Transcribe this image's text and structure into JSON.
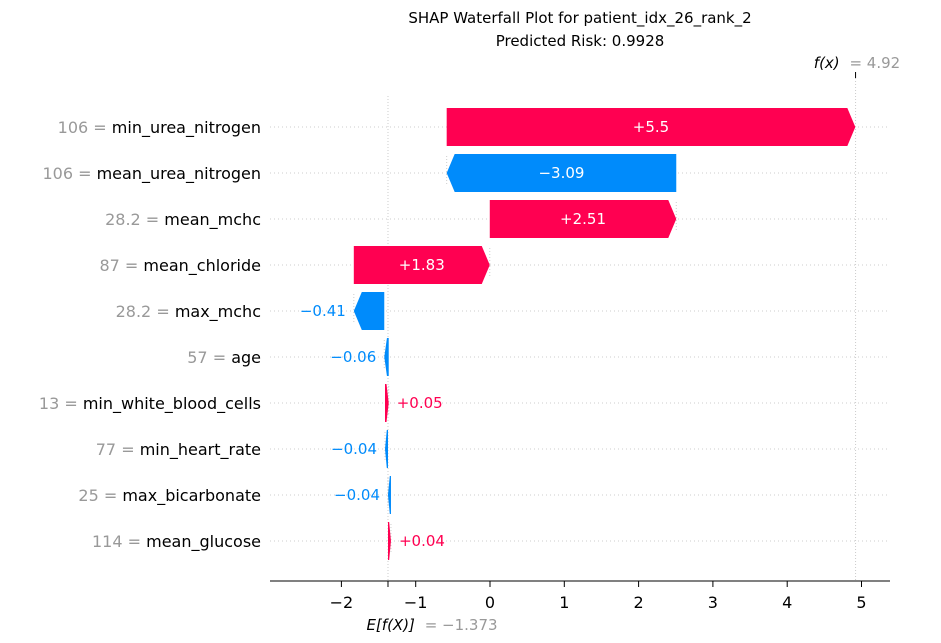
{
  "chart_data": {
    "type": "waterfall",
    "title": "SHAP Waterfall Plot for patient_idx_26_rank_2",
    "subtitle": "Predicted Risk: 0.9928",
    "base_value": -1.373,
    "base_label_math": "E[f(X)]",
    "base_label_value": "= −1.373",
    "output_value": 4.92,
    "output_label_math": "f(x)",
    "output_label_value": "= 4.92",
    "xlim": [
      -3.0,
      5.35
    ],
    "xticks": [
      -2,
      -1,
      0,
      1,
      2,
      3,
      4,
      5
    ],
    "xtick_labels": [
      "−2",
      "−1",
      "0",
      "1",
      "2",
      "3",
      "4",
      "5"
    ],
    "features": [
      {
        "feature_value": "106",
        "name": "min_urea_nitrogen",
        "contribution": 5.5,
        "label": "+5.5"
      },
      {
        "feature_value": "106",
        "name": "mean_urea_nitrogen",
        "contribution": -3.09,
        "label": "−3.09"
      },
      {
        "feature_value": "28.2",
        "name": "mean_mchc",
        "contribution": 2.51,
        "label": "+2.51"
      },
      {
        "feature_value": "87",
        "name": "mean_chloride",
        "contribution": 1.83,
        "label": "+1.83"
      },
      {
        "feature_value": "28.2",
        "name": "max_mchc",
        "contribution": -0.41,
        "label": "−0.41"
      },
      {
        "feature_value": "57",
        "name": "age",
        "contribution": -0.06,
        "label": "−0.06"
      },
      {
        "feature_value": "13",
        "name": "min_white_blood_cells",
        "contribution": 0.05,
        "label": "+0.05"
      },
      {
        "feature_value": "77",
        "name": "min_heart_rate",
        "contribution": -0.04,
        "label": "−0.04"
      },
      {
        "feature_value": "25",
        "name": "max_bicarbonate",
        "contribution": -0.04,
        "label": "−0.04"
      },
      {
        "feature_value": "114",
        "name": "mean_glucose",
        "contribution": 0.04,
        "label": "+0.04"
      }
    ],
    "colors": {
      "positive": "#ff0051",
      "negative": "#008bfb",
      "value_text": "#999999",
      "gridline": "#cccccc"
    }
  }
}
